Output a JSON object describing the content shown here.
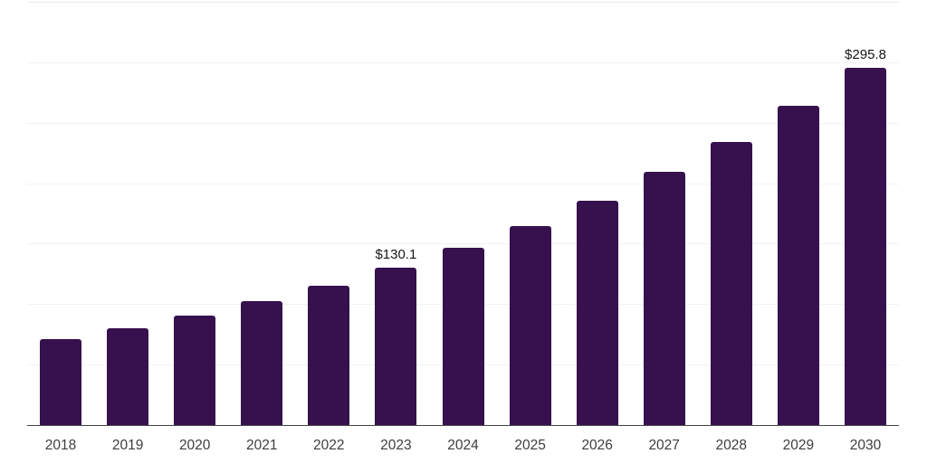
{
  "chart_data": {
    "type": "bar",
    "title": "",
    "xlabel": "",
    "ylabel": "",
    "categories": [
      "2018",
      "2019",
      "2020",
      "2021",
      "2022",
      "2023",
      "2024",
      "2025",
      "2026",
      "2027",
      "2028",
      "2029",
      "2030"
    ],
    "values": [
      71.2,
      80.0,
      90.2,
      102.3,
      115.2,
      130.1,
      146.5,
      164.6,
      185.3,
      209.3,
      234.3,
      264.2,
      295.8
    ],
    "data_labels": [
      "",
      "",
      "",
      "",
      "",
      "$130.1",
      "",
      "",
      "",
      "",
      "",
      "",
      "$295.8"
    ],
    "ylim": [
      0,
      350
    ],
    "gridline_step": 50,
    "grid": true,
    "y_axis_labels_visible": false,
    "legend_position": "none"
  },
  "colors": {
    "bar": "#36114d",
    "gridline": "#f2f2f4",
    "top_gridline": "#ebebee",
    "axis_line": "#444444",
    "tick_label": "#3d3d3d",
    "data_label": "#16161a",
    "background": "#ffffff"
  }
}
